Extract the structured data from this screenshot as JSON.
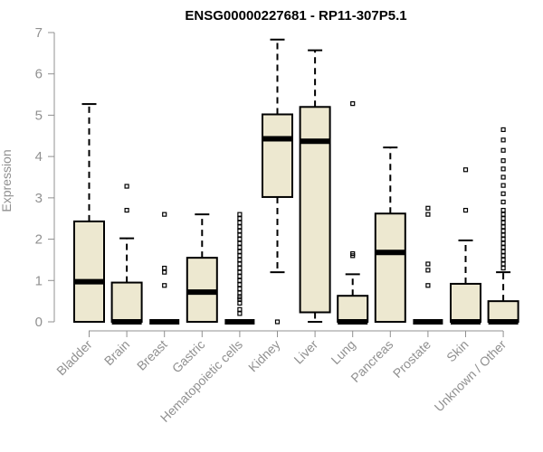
{
  "chart_data": {
    "type": "boxplot",
    "title": "ENSG00000227681 - RP11-307P5.1",
    "xlabel": "",
    "ylabel": "Expression",
    "ylim": [
      0,
      7
    ],
    "yticks": [
      0,
      1,
      2,
      3,
      4,
      5,
      6,
      7
    ],
    "box_color": "#ede8d0",
    "line_color": "#000000",
    "axis_color": "#909090",
    "categories": [
      "Bladder",
      "Brain",
      "Breast",
      "Gastric",
      "Hematopoietic cells",
      "Kidney",
      "Liver",
      "Lung",
      "Pancreas",
      "Prostate",
      "Skin",
      "Unknown / Other"
    ],
    "boxes": [
      {
        "label": "Bladder",
        "min": 0,
        "q1": 0,
        "median": 0.97,
        "q3": 2.43,
        "max": 5.27,
        "outliers": []
      },
      {
        "label": "Brain",
        "min": 0,
        "q1": 0,
        "median": 0,
        "q3": 0.95,
        "max": 2.02,
        "outliers": [
          2.7,
          3.28
        ]
      },
      {
        "label": "Breast",
        "min": 0,
        "q1": 0,
        "median": 0,
        "q3": 0,
        "max": 0,
        "outliers": [
          0.88,
          1.2,
          1.3,
          2.6
        ]
      },
      {
        "label": "Gastric",
        "min": 0,
        "q1": 0,
        "median": 0.72,
        "q3": 1.55,
        "max": 2.6,
        "outliers": []
      },
      {
        "label": "Hematopoietic cells",
        "min": 0,
        "q1": 0,
        "median": 0,
        "q3": 0,
        "max": 0,
        "outliers": [
          0.2,
          0.3,
          0.45,
          0.55,
          0.6,
          0.7,
          0.8,
          0.9,
          1.0,
          1.1,
          1.2,
          1.3,
          1.4,
          1.5,
          1.6,
          1.7,
          1.8,
          1.9,
          2.0,
          2.1,
          2.2,
          2.3,
          2.4,
          2.5,
          2.6
        ]
      },
      {
        "label": "Kidney",
        "min": 1.2,
        "q1": 3.02,
        "median": 4.43,
        "q3": 5.02,
        "max": 6.83,
        "outliers": [
          0
        ]
      },
      {
        "label": "Liver",
        "min": 0,
        "q1": 0.23,
        "median": 4.37,
        "q3": 5.2,
        "max": 6.57,
        "outliers": []
      },
      {
        "label": "Lung",
        "min": 0,
        "q1": 0,
        "median": 0,
        "q3": 0.63,
        "max": 1.15,
        "outliers": [
          1.6,
          1.65,
          5.28
        ]
      },
      {
        "label": "Pancreas",
        "min": 0,
        "q1": 0,
        "median": 1.68,
        "q3": 2.62,
        "max": 4.22,
        "outliers": []
      },
      {
        "label": "Prostate",
        "min": 0,
        "q1": 0,
        "median": 0,
        "q3": 0,
        "max": 0,
        "outliers": [
          0.88,
          1.25,
          1.4,
          2.6,
          2.75
        ]
      },
      {
        "label": "Skin",
        "min": 0,
        "q1": 0,
        "median": 0,
        "q3": 0.92,
        "max": 1.97,
        "outliers": [
          2.7,
          3.68
        ]
      },
      {
        "label": "Unknown / Other",
        "min": 0,
        "q1": 0,
        "median": 0,
        "q3": 0.5,
        "max": 1.2,
        "outliers": [
          1.3,
          1.4,
          1.5,
          1.6,
          1.7,
          1.8,
          1.9,
          2.0,
          2.1,
          2.2,
          2.3,
          2.4,
          2.5,
          2.6,
          2.7,
          2.9,
          3.1,
          3.3,
          3.5,
          3.7,
          3.9,
          4.15,
          4.4,
          4.65
        ]
      }
    ]
  }
}
